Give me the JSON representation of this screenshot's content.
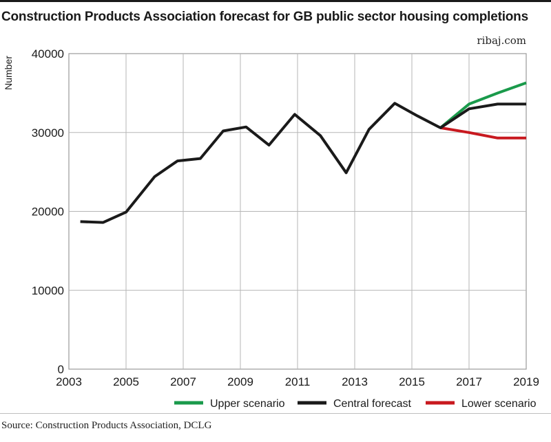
{
  "header": {
    "title": "Construction Products Association forecast for GB public sector housing completions",
    "brand": "ribaj.com"
  },
  "footer": {
    "source": "Source: Construction Products Association, DCLG"
  },
  "chart_data": {
    "type": "line",
    "title": "Construction Products Association forecast for GB public sector housing completions",
    "xlabel": "",
    "ylabel": "Number",
    "xlim": [
      2003,
      2019
    ],
    "ylim": [
      0,
      40000
    ],
    "x_ticks": [
      2003,
      2005,
      2007,
      2009,
      2011,
      2013,
      2015,
      2017,
      2019
    ],
    "y_ticks": [
      0,
      10000,
      20000,
      30000,
      40000
    ],
    "grid": true,
    "legend_position": "bottom",
    "series": [
      {
        "name": "Upper scenario",
        "color": "#1a9a4b",
        "points": [
          [
            2016,
            30600
          ],
          [
            2017,
            33600
          ],
          [
            2018,
            35000
          ],
          [
            2019,
            36300
          ]
        ]
      },
      {
        "name": "Central forecast",
        "color": "#1a1a1a",
        "points": [
          [
            2003.4,
            18700
          ],
          [
            2004.2,
            18600
          ],
          [
            2005,
            19900
          ],
          [
            2006,
            24400
          ],
          [
            2006.8,
            26400
          ],
          [
            2007.6,
            26700
          ],
          [
            2008.4,
            30200
          ],
          [
            2009.2,
            30700
          ],
          [
            2010,
            28400
          ],
          [
            2010.9,
            32300
          ],
          [
            2011.8,
            29600
          ],
          [
            2012.7,
            24900
          ],
          [
            2013.5,
            30400
          ],
          [
            2014.4,
            33700
          ],
          [
            2015.2,
            32100
          ],
          [
            2016,
            30600
          ],
          [
            2017,
            33000
          ],
          [
            2018,
            33600
          ],
          [
            2019,
            33600
          ]
        ]
      },
      {
        "name": "Lower scenario",
        "color": "#c8191f",
        "points": [
          [
            2016,
            30600
          ],
          [
            2017,
            30000
          ],
          [
            2018,
            29300
          ],
          [
            2019,
            29300
          ]
        ]
      }
    ]
  }
}
